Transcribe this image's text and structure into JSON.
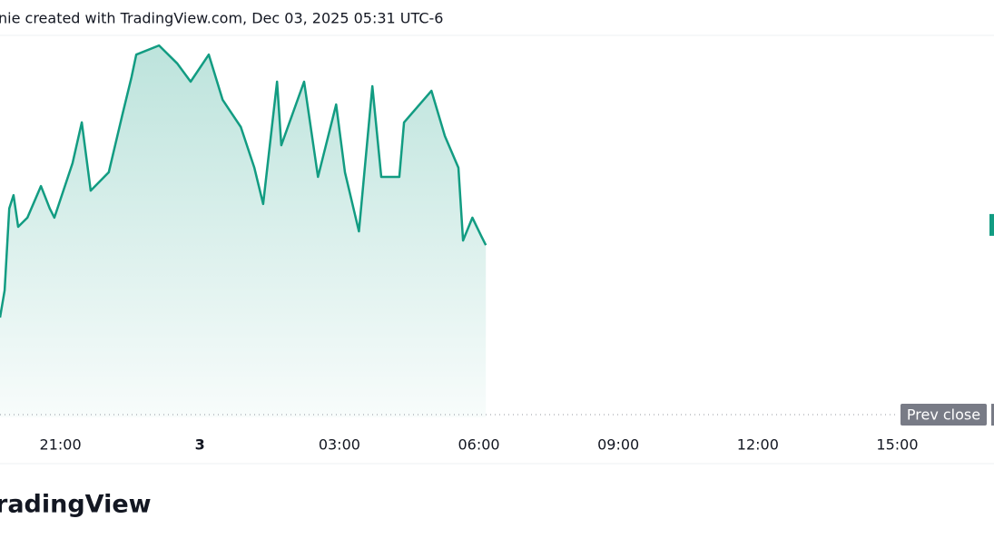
{
  "chart_data": {
    "type": "area",
    "header": "nie created with TradingView.com, Dec 03, 2025 05:31 UTC-6",
    "brand": "radingView",
    "x": [
      19.7,
      19.8,
      19.9,
      19.99,
      20.09,
      20.29,
      20.58,
      20.77,
      20.87,
      21.26,
      21.46,
      21.65,
      22.04,
      22.34,
      22.53,
      22.63,
      23.12,
      23.51,
      23.8,
      24.19,
      24.49,
      24.88,
      25.17,
      25.36,
      25.66,
      25.75,
      26.24,
      26.54,
      26.93,
      27.12,
      27.42,
      27.71,
      27.9,
      28.29,
      28.39,
      28.98,
      29.27,
      29.56,
      29.66,
      29.86,
      30.05,
      30.15
    ],
    "series": [
      {
        "color": "#129c82",
        "values": [
          26.2,
          33.3,
          54.8,
          58.3,
          50,
          52.4,
          60.7,
          54.8,
          52.4,
          66.7,
          77.4,
          59.5,
          64.3,
          79.8,
          89.3,
          95.2,
          97.6,
          92.9,
          88.1,
          95.2,
          83.3,
          76.2,
          65.5,
          56,
          88.1,
          71.4,
          88.1,
          63.1,
          82.1,
          64.3,
          48.8,
          86.9,
          63.1,
          63.1,
          77.4,
          85.7,
          73.8,
          65.5,
          46.4,
          52.4,
          47.6,
          45.2
        ]
      }
    ],
    "xlim": [
      19.7,
      41.08
    ],
    "xticks": [
      {
        "value": 21,
        "label": "21:00"
      },
      {
        "value": 24,
        "label": "3"
      },
      {
        "value": 27,
        "label": "03:00"
      },
      {
        "value": 30,
        "label": "06:00"
      },
      {
        "value": 33,
        "label": "09:00"
      },
      {
        "value": 36,
        "label": "12:00"
      },
      {
        "value": 39,
        "label": "15:00"
      }
    ],
    "ylim": [
      0,
      100
    ],
    "prev_close": {
      "label": "Prev close",
      "value": 0.7
    },
    "last_marker": 50.5
  }
}
